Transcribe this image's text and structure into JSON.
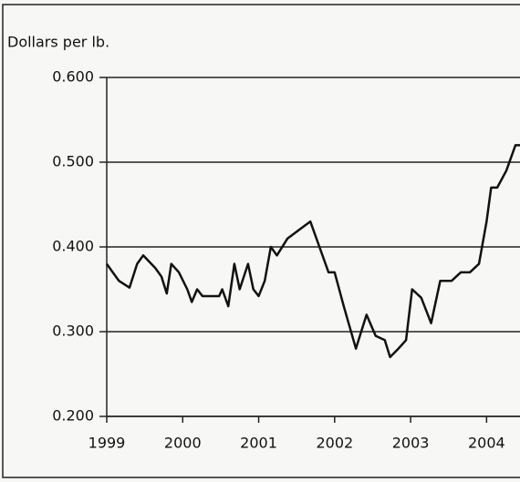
{
  "chart_data": {
    "type": "line",
    "y_label": "Dollars per lb.",
    "x": [
      1999.0,
      1999.16,
      1999.3,
      1999.4,
      1999.48,
      1999.64,
      1999.72,
      1999.79,
      1999.85,
      1999.95,
      2000.06,
      2000.12,
      2000.19,
      2000.26,
      2000.48,
      2000.52,
      2000.6,
      2000.68,
      2000.75,
      2000.86,
      2000.93,
      2001.0,
      2001.08,
      2001.16,
      2001.24,
      2001.38,
      2001.53,
      2001.68,
      2001.8,
      2001.92,
      2002.0,
      2002.12,
      2002.28,
      2002.42,
      2002.54,
      2002.66,
      2002.73,
      2002.84,
      2002.94,
      2003.02,
      2003.14,
      2003.27,
      2003.39,
      2003.54,
      2003.66,
      2003.78,
      2003.9,
      2004.0,
      2004.06,
      2004.14,
      2004.26,
      2004.38,
      2004.44
    ],
    "series": [
      {
        "color": "#111111",
        "values": [
          0.38,
          0.36,
          0.352,
          0.38,
          0.39,
          0.375,
          0.365,
          0.345,
          0.38,
          0.37,
          0.35,
          0.335,
          0.35,
          0.342,
          0.342,
          0.35,
          0.33,
          0.38,
          0.35,
          0.38,
          0.35,
          0.342,
          0.36,
          0.4,
          0.39,
          0.41,
          0.42,
          0.43,
          0.4,
          0.37,
          0.37,
          0.33,
          0.28,
          0.32,
          0.295,
          0.29,
          0.27,
          0.28,
          0.29,
          0.35,
          0.34,
          0.31,
          0.36,
          0.36,
          0.37,
          0.37,
          0.38,
          0.43,
          0.47,
          0.47,
          0.49,
          0.52,
          0.52
        ]
      }
    ],
    "xlim": [
      1999,
      2004.44
    ],
    "xticks": [
      1999,
      2000,
      2001,
      2002,
      2003,
      2004
    ],
    "ylim": [
      0.2,
      0.6
    ],
    "yticks": [
      {
        "value": 0.2,
        "label": "0.200"
      },
      {
        "value": 0.3,
        "label": "0.300"
      },
      {
        "value": 0.4,
        "label": "0.400"
      },
      {
        "value": 0.5,
        "label": "0.500"
      },
      {
        "value": 0.6,
        "label": "0.600"
      }
    ],
    "grid": true
  }
}
